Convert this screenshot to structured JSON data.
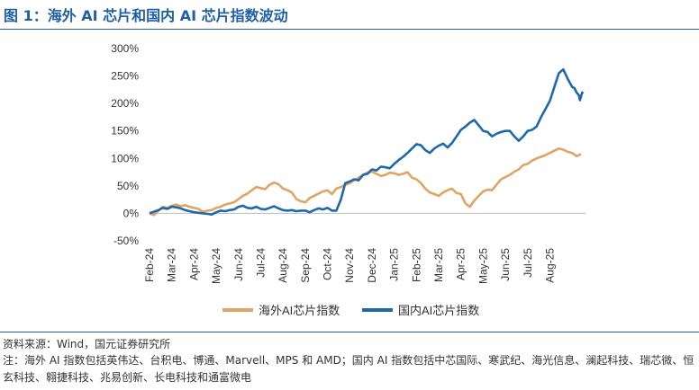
{
  "figure": {
    "title": "图 1：海外 AI 芯片和国内 AI 芯片指数波动",
    "source": "资料来源：Wind，国元证券研究所",
    "note": "注：海外 AI 指数包括英伟达、台积电、博通、Marvell、MPS 和 AMD；国内 AI 指数包括中芯国际、寒武纪、海光信息、澜起科技、瑞芯微、恒玄科技、翱捷科技、兆易创新、长电科技和通富微电"
  },
  "colors": {
    "overseas": "#e0a463",
    "domestic": "#1f68ad",
    "title": "#1f5fa8"
  },
  "chart_data": {
    "type": "line",
    "title": "",
    "xlabel": "",
    "ylabel": "",
    "ylim": [
      -50,
      300
    ],
    "yticks": [
      -50,
      0,
      50,
      100,
      150,
      200,
      250,
      300
    ],
    "ytick_labels": [
      "-50%",
      "0%",
      "50%",
      "100%",
      "150%",
      "200%",
      "250%",
      "300%"
    ],
    "x_months": [
      "Feb-24",
      "Mar-24",
      "Apr-24",
      "May-24",
      "Jun-24",
      "Jul-24",
      "Aug-24",
      "Sep-24",
      "Oct-24",
      "Nov-24",
      "Dec-24",
      "Jan-25",
      "Feb-25",
      "Mar-25",
      "Apr-25",
      "May-25",
      "Jun-25",
      "Jul-25",
      "Aug-25"
    ],
    "x_range": [
      0,
      19.6
    ],
    "legend_position": "bottom",
    "series": [
      {
        "name": "海外AI芯片指数",
        "key": "overseas",
        "x": [
          0,
          0.2,
          0.4,
          0.6,
          0.8,
          1.0,
          1.2,
          1.4,
          1.6,
          1.8,
          2.0,
          2.2,
          2.4,
          2.6,
          2.8,
          3.0,
          3.2,
          3.4,
          3.6,
          3.8,
          4.0,
          4.2,
          4.4,
          4.6,
          4.8,
          5.0,
          5.2,
          5.4,
          5.6,
          5.8,
          6.0,
          6.2,
          6.4,
          6.6,
          6.8,
          7.0,
          7.2,
          7.4,
          7.6,
          7.8,
          8.0,
          8.2,
          8.4,
          8.6,
          8.8,
          9.0,
          9.2,
          9.4,
          9.6,
          9.8,
          10.0,
          10.2,
          10.4,
          10.6,
          10.8,
          11.0,
          11.2,
          11.4,
          11.6,
          11.8,
          12.0,
          12.2,
          12.4,
          12.6,
          12.8,
          13.0,
          13.2,
          13.4,
          13.6,
          13.8,
          14.0,
          14.2,
          14.4,
          14.6,
          14.8,
          15.0,
          15.2,
          15.4,
          15.6,
          15.8,
          16.0,
          16.2,
          16.4,
          16.6,
          16.8,
          17.0,
          17.2,
          17.4,
          17.6,
          17.8,
          18.0,
          18.2,
          18.4,
          18.6,
          18.8,
          19.0,
          19.2,
          19.4
        ],
        "values": [
          0,
          -3,
          5,
          12,
          10,
          14,
          16,
          13,
          15,
          12,
          10,
          8,
          3,
          5,
          6,
          10,
          12,
          16,
          18,
          20,
          26,
          32,
          36,
          42,
          48,
          46,
          44,
          52,
          56,
          53,
          45,
          42,
          38,
          26,
          22,
          20,
          28,
          32,
          36,
          40,
          42,
          35,
          45,
          48,
          52,
          55,
          60,
          65,
          70,
          74,
          76,
          72,
          68,
          70,
          74,
          73,
          70,
          72,
          75,
          65,
          62,
          55,
          45,
          38,
          35,
          32,
          38,
          42,
          45,
          37,
          35,
          18,
          12,
          23,
          32,
          40,
          43,
          42,
          52,
          62,
          66,
          70,
          76,
          80,
          88,
          90,
          96,
          100,
          103,
          106,
          110,
          114,
          118,
          116,
          112,
          110,
          104,
          108
        ]
      },
      {
        "name": "国内AI芯片指数",
        "key": "domestic",
        "x": [
          0,
          0.2,
          0.4,
          0.6,
          0.8,
          1.0,
          1.2,
          1.4,
          1.6,
          1.8,
          2.0,
          2.2,
          2.4,
          2.6,
          2.8,
          3.0,
          3.2,
          3.4,
          3.6,
          3.8,
          4.0,
          4.2,
          4.4,
          4.6,
          4.8,
          5.0,
          5.2,
          5.4,
          5.6,
          5.8,
          6.0,
          6.2,
          6.4,
          6.6,
          6.8,
          7.0,
          7.2,
          7.4,
          7.6,
          7.8,
          8.0,
          8.2,
          8.4,
          8.6,
          8.8,
          9.0,
          9.2,
          9.4,
          9.6,
          9.8,
          10.0,
          10.2,
          10.4,
          10.6,
          10.8,
          11.0,
          11.2,
          11.4,
          11.6,
          11.8,
          12.0,
          12.2,
          12.4,
          12.6,
          12.8,
          13.0,
          13.2,
          13.4,
          13.6,
          13.8,
          14.0,
          14.2,
          14.4,
          14.6,
          14.8,
          15.0,
          15.2,
          15.4,
          15.6,
          15.8,
          16.0,
          16.2,
          16.4,
          16.6,
          16.8,
          17.0,
          17.2,
          17.4,
          17.6,
          17.8,
          18.0,
          18.2,
          18.4,
          18.6,
          18.8,
          19.0,
          19.1,
          19.2,
          19.3,
          19.35,
          19.45,
          19.5
        ],
        "values": [
          0,
          3,
          6,
          10,
          8,
          12,
          11,
          9,
          6,
          4,
          2,
          1,
          0,
          -1,
          -2,
          2,
          5,
          4,
          6,
          7,
          12,
          14,
          10,
          9,
          12,
          8,
          7,
          10,
          13,
          9,
          6,
          5,
          6,
          4,
          5,
          5,
          2,
          6,
          9,
          7,
          10,
          5,
          5,
          25,
          55,
          58,
          62,
          60,
          70,
          72,
          80,
          78,
          85,
          84,
          82,
          90,
          97,
          103,
          110,
          118,
          126,
          124,
          115,
          110,
          118,
          123,
          127,
          120,
          128,
          140,
          152,
          158,
          165,
          170,
          160,
          150,
          148,
          140,
          145,
          148,
          150,
          150,
          140,
          132,
          140,
          150,
          152,
          158,
          175,
          190,
          205,
          230,
          255,
          262,
          245,
          230,
          228,
          220,
          215,
          206,
          220,
          218
        ]
      }
    ]
  }
}
